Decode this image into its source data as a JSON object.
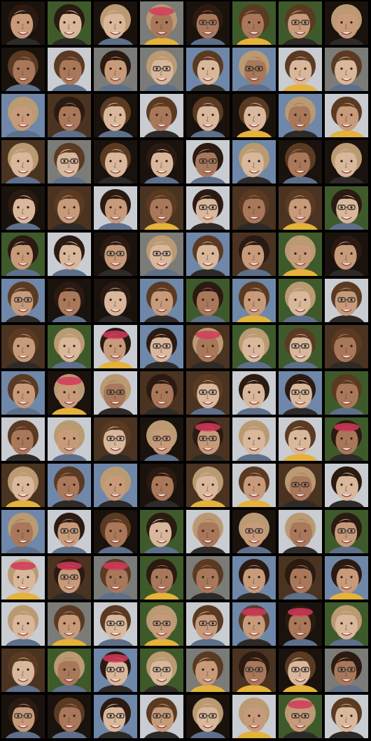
{
  "grid": {
    "rows": 16,
    "cols": 8,
    "description_kind": "face-sample-grid",
    "palette": {
      "bg_dark": "#1a120c",
      "bg_brown": "#4a3320",
      "bg_green": "#3f5a2a",
      "bg_blue": "#6f87a8",
      "bg_light": "#c9ccd0",
      "bg_gray": "#7b7b78",
      "skin_light": "#d9b79b",
      "skin_mid": "#c79a7a",
      "skin_dark": "#a9775a",
      "hair_brown": "#5a3a22",
      "hair_dark": "#2a1a12",
      "hair_blonde": "#b99a72",
      "accent_red": "#d33a5a",
      "accent_yellow": "#e5b23a"
    },
    "tile_styles": [
      "dark-brown-hair",
      "blonde-hair-light-bg",
      "glasses-green-bg",
      "long-dark-hair",
      "colorful-headband",
      "short-brown-hair",
      "blonde-yellow-shirt",
      "gray-bg-glasses"
    ]
  }
}
